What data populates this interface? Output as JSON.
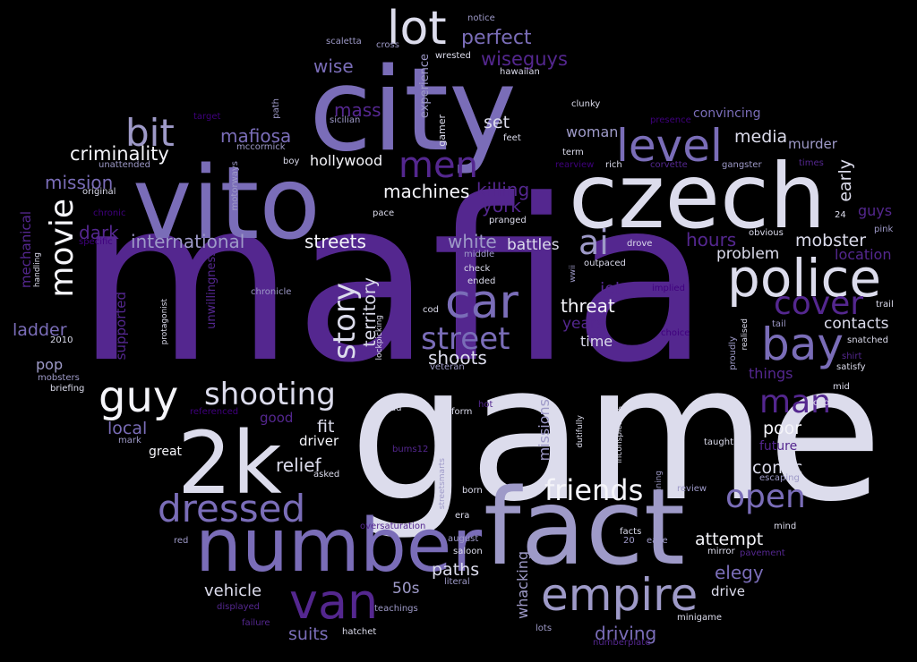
{
  "words": {
    "mafia": "mafia",
    "game": "game",
    "city": "city",
    "vito": "vito",
    "czech": "czech",
    "fact": "fact",
    "number": "number",
    "k2": "2k",
    "police": "police",
    "lot": "lot",
    "level": "level",
    "car": "car",
    "empire": "empire",
    "van": "van",
    "bay": "bay",
    "men": "men",
    "bit": "bit",
    "movie": "movie",
    "guy": "guy",
    "dressed": "dressed",
    "shooting": "shooting",
    "street": "street",
    "story": "story",
    "ai": "ai",
    "cover": "cover",
    "open": "open",
    "man": "man",
    "friends": "friends",
    "perfect": "perfect",
    "wiseguys": "wiseguys",
    "mass": "mass",
    "wise": "wise",
    "mafiosa": "mafiosa",
    "criminality": "criminality",
    "mission": "mission",
    "dark": "dark",
    "international": "international",
    "streets": "streets",
    "machines": "machines",
    "killing": "killing",
    "york": "york",
    "white": "white",
    "battles": "battles",
    "hours": "hours",
    "mobster": "mobster",
    "problem": "problem",
    "media": "media",
    "murder": "murder",
    "early": "early",
    "guys": "guys",
    "location": "location",
    "contacts": "contacts",
    "hollywood": "hollywood",
    "set": "set",
    "woman": "woman",
    "convincing": "convincing",
    "threat": "threat",
    "job": "job",
    "years": "years",
    "time": "time",
    "shoots": "shoots",
    "territory": "territory",
    "ladder": "ladder",
    "pop": "pop",
    "local": "local",
    "good": "good",
    "fit": "fit",
    "driver": "driver",
    "relief": "relief",
    "great": "great",
    "poor": "poor",
    "future": "future",
    "comic": "comic",
    "attempt": "attempt",
    "elegy": "elegy",
    "drive": "drive",
    "driving": "driving",
    "paths": "paths",
    "vehicle": "vehicle",
    "fifties": "50s",
    "suits": "suits",
    "whacking": "whacking",
    "missions": "missions",
    "things": "things",
    "mechanical": "mechanical",
    "supported": "supported",
    "unwillingness": "unwillingness",
    "experience": "experience",
    "gamer": "gamer",
    "notice": "notice",
    "scaletta": "scaletta",
    "cross": "cross",
    "wrested": "wrested",
    "hawaiian": "hawaiian",
    "clunky": "clunky",
    "term": "term",
    "feet": "feet",
    "sicilian": "sicilian",
    "mccormick": "mccormick",
    "target": "target",
    "path": "path",
    "presence": "presence",
    "boy": "boy",
    "unattended": "unattended",
    "original": "original",
    "motorways": "motorways",
    "pace": "pace",
    "chronic": "chronic",
    "specific": "specific",
    "pranged": "pranged",
    "drove": "drove",
    "obvious": "obvious",
    "rearview": "rearview",
    "rich": "rich",
    "corvette": "corvette",
    "gangster": "gangster",
    "times": "times",
    "n24": "24",
    "pink": "pink",
    "middle": "middle",
    "check": "check",
    "ended": "ended",
    "outpaced": "outpaced",
    "handling": "handling",
    "chronicle": "chronicle",
    "protagonist": "protagonist",
    "y2010": "2010",
    "mobsters": "mobsters",
    "briefing": "briefing",
    "implied": "implied",
    "wwii": "wwii",
    "cod": "cod",
    "lockpicking": "lockpicking",
    "veteran": "veteran",
    "choice": "choice",
    "realised": "realised",
    "proudly": "proudly",
    "tail": "tail",
    "trail": "trail",
    "snatched": "snatched",
    "shirt": "shirt",
    "satisfy": "satisfy",
    "mid": "mid",
    "chose": "chose",
    "referenced": "referenced",
    "read": "read",
    "hot": "hot",
    "form": "form",
    "mark": "mark",
    "bums12": "bums12",
    "asked": "asked",
    "dutifully": "dutifully",
    "inconspicuous": "inconspicuous",
    "taught": "taught",
    "escaping": "escaping",
    "cunning": "cunning",
    "review": "review",
    "streetsmarts": "streetsmarts",
    "born": "born",
    "era": "era",
    "oversaturation": "oversaturation",
    "red": "red",
    "august": "august",
    "saloon": "saloon",
    "literal": "literal",
    "displayed": "displayed",
    "teachings": "teachings",
    "failure": "failure",
    "hatchet": "hatchet",
    "lots": "lots",
    "minigame": "minigame",
    "numberplate": "numberplate",
    "mind": "mind",
    "facts": "facts",
    "n20": "20",
    "ease": "ease",
    "mirror": "mirror",
    "pavement": "pavement"
  }
}
